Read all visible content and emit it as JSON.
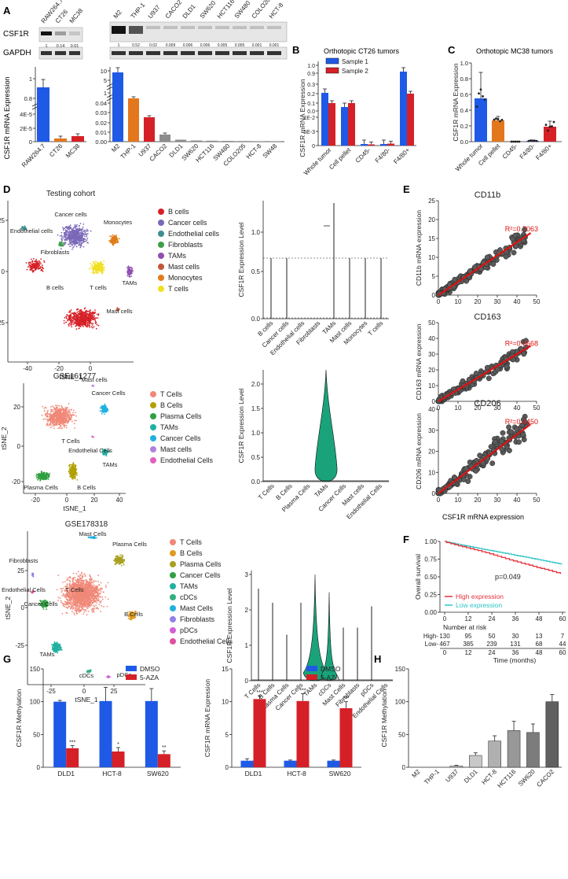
{
  "panels": {
    "A": {
      "letter": "A",
      "protein": "CSF1R",
      "loading": "GAPDH",
      "blot1_lanes": [
        "RAW264.7",
        "CT26",
        "MC38"
      ],
      "blot1_quant": [
        "1",
        "0.14",
        "0.01"
      ],
      "blot2_lanes": [
        "M2",
        "THP-1",
        "U937",
        "CACO2",
        "DLD1",
        "SW620",
        "HCT116",
        "SW480",
        "COLO205",
        "HCT-8"
      ],
      "blot2_quant": [
        "1",
        "0.52",
        "0.02",
        "0.009",
        "0.006",
        "0.006",
        "0.005",
        "0.005",
        "0.001",
        "0.001"
      ],
      "ylabel": "CSF1R mRNA Expression",
      "bar1_ticks": [
        "1",
        "0.8",
        "4E-5",
        "2E-5",
        "0"
      ],
      "bar2_ticks": [
        "10",
        "5",
        "1",
        "0.04",
        "0.03",
        "0.02",
        "0.01",
        "0.00"
      ]
    },
    "B": {
      "letter": "B",
      "title": "Orthotopic CT26 tumors",
      "legend": [
        "Sample 1",
        "Sample 2"
      ],
      "ticks": [
        "1.0",
        "0.9",
        "0.3",
        "0.2",
        "0.1",
        "0.0",
        "1E-2",
        "5E-3",
        "0"
      ]
    },
    "C": {
      "letter": "C",
      "title": "Orthotopic MC38 tumors",
      "ticks": [
        "1.0",
        "0.8",
        "0.6",
        "0.4",
        "0.2",
        "0.0"
      ]
    },
    "D": {
      "letter": "D",
      "cohort1": "Testing cohort",
      "cohort2": "GSE161277",
      "cohort3": "GSE178318",
      "tsne_x": "tSNE_1",
      "tsne_y": "tSNE_2",
      "violin_ylabel": "CSF1R Expression Level",
      "cluster_labels1": [
        "Cancer cells",
        "Monocytes",
        "Endothelial cells",
        "Fibroblasts",
        "T cells",
        "TAMs",
        "B cells",
        "Mast cells"
      ],
      "cluster_labels2": [
        "Mast cells",
        "Cancer Cells",
        "T Cells",
        "Endothelial Cells",
        "TAMs",
        "Plasma Cells",
        "B Cells"
      ],
      "cluster_labels3": [
        "Mast Cells",
        "Plasma Cells",
        "Fibroblasts",
        "Endothelial Cells",
        "T Cells",
        "Cancer Cells",
        "B Cells",
        "TAMs",
        "cDCs",
        "pDCs"
      ],
      "tsne1_xt": [
        "-40",
        "-20",
        "0"
      ],
      "tsne1_yt": [
        "25",
        "0",
        "-25"
      ],
      "tsne2_xt": [
        "-20",
        "0",
        "20",
        "40"
      ],
      "tsne2_yt": [
        "20",
        "0",
        "-20"
      ],
      "tsne3_xt": [
        "-25",
        "0",
        "25"
      ],
      "tsne3_yt": [
        "25",
        "0",
        "-25"
      ],
      "v1_ticks": [
        "1.0",
        "0.5",
        "0.0"
      ],
      "v2_ticks": [
        "2.0",
        "1.5",
        "1.0",
        "0.5",
        "0.0"
      ],
      "v3_ticks": [
        "3",
        "2",
        "1",
        "0"
      ]
    },
    "E": {
      "letter": "E",
      "xlabel": "CSF1R mRNA expression",
      "xticks": [
        "0",
        "10",
        "20",
        "30",
        "40",
        "50"
      ]
    },
    "F": {
      "letter": "F",
      "ylabel": "Overall survival",
      "pvalue": "p=0.049",
      "legend": [
        "High expression",
        "Low expression"
      ],
      "yticks": [
        "1.00",
        "0.75",
        "0.50",
        "0.25",
        "0.00"
      ],
      "xticks": [
        "0",
        "12",
        "24",
        "36",
        "48",
        "60"
      ],
      "risk_title": "Number at risk",
      "risk_high_label": "High",
      "risk_low_label": "Low",
      "risk_high": [
        "130",
        "95",
        "50",
        "30",
        "13",
        "7"
      ],
      "risk_low": [
        "467",
        "385",
        "239",
        "131",
        "68",
        "44"
      ],
      "xlabel": "Time (months)"
    },
    "G": {
      "letter": "G",
      "legend": [
        "DMSO",
        "5-AZA"
      ],
      "ylabel1": "CSF1R Methylation",
      "ylabel2": "CSF1R mRNA Expression",
      "yt1": [
        "150",
        "100",
        "50",
        "0"
      ],
      "yt2": [
        "15",
        "10",
        "5",
        "0"
      ]
    },
    "H": {
      "letter": "H",
      "ylabel": "CSF1R Methylation",
      "yt": [
        "150",
        "100",
        "50",
        "0"
      ]
    }
  },
  "colors": {
    "blue": "#1f5ae6",
    "orange": "#e3771e",
    "red": "#d62027",
    "gray": "#8c8c8c",
    "teal": "#2ec4c4",
    "green": "#1aa37a"
  },
  "chart_data": [
    {
      "id": "A1",
      "type": "bar",
      "categories": [
        "RAW264.7",
        "CT26",
        "MC38"
      ],
      "values": [
        1,
        5e-06,
        1e-05
      ],
      "ylabel": "CSF1R mRNA Expression",
      "colors": [
        "#1f5ae6",
        "#e3771e",
        "#d62027"
      ]
    },
    {
      "id": "A2",
      "type": "bar",
      "categories": [
        "M2",
        "THP-1",
        "U937",
        "CACO2",
        "DLD1",
        "SW620",
        "HCT116",
        "SW480",
        "COLO205",
        "HCT-8",
        "SW48"
      ],
      "values": [
        10.5,
        0.039,
        0.027,
        0.007,
        0.001,
        0.0005,
        0.0004,
        0.0003,
        0.0002,
        0.0001,
        0.0001
      ]
    },
    {
      "id": "B",
      "type": "bar",
      "title": "Orthotopic CT26 tumors",
      "categories": [
        "Whole tumor",
        "Cell pellet",
        "CD45-",
        "F4/80-",
        "F4/80+"
      ],
      "series": [
        {
          "name": "Sample 1",
          "values": [
            0.18,
            0.05,
            0.0008,
            0.0009,
            0.93
          ]
        },
        {
          "name": "Sample 2",
          "values": [
            0.08,
            0.07,
            0.0006,
            0.0013,
            0.2
          ]
        }
      ]
    },
    {
      "id": "C",
      "type": "bar",
      "title": "Orthotopic MC38 tumors",
      "categories": [
        "Whole tumor",
        "Cell pellet",
        "CD45-",
        "F4/80-",
        "F4/80+"
      ],
      "values": [
        0.55,
        0.27,
        0.0,
        0.01,
        0.19
      ],
      "ylim": [
        0,
        1.0
      ]
    },
    {
      "id": "E1",
      "type": "scatter",
      "title": "CD11b",
      "r2": "R²=0.7063",
      "ylabel": "CD11b mRNA expression",
      "yticks": [
        "25",
        "20",
        "15",
        "10",
        "5",
        "0"
      ],
      "ylim": [
        0,
        25
      ]
    },
    {
      "id": "E2",
      "type": "scatter",
      "title": "CD163",
      "r2": "R²=0.6668",
      "ylabel": "CD163 mRNA expression",
      "yticks": [
        "50",
        "40",
        "30",
        "20",
        "10",
        "0"
      ],
      "ylim": [
        0,
        50
      ]
    },
    {
      "id": "E3",
      "type": "scatter",
      "title": "CD206",
      "r2": "R²=0.4450",
      "ylabel": "CD206 mRNA expression",
      "yticks": [
        "40",
        "30",
        "20",
        "10",
        "0"
      ],
      "ylim": [
        0,
        40
      ]
    },
    {
      "id": "G1",
      "type": "bar",
      "categories": [
        "DLD1",
        "HCT-8",
        "SW620"
      ],
      "series": [
        {
          "name": "DMSO",
          "values": [
            100,
            101,
            101
          ]
        },
        {
          "name": "5-AZA",
          "values": [
            29,
            24,
            20
          ]
        }
      ],
      "sig": [
        "***",
        "*",
        "**"
      ],
      "ylim": [
        0,
        150
      ]
    },
    {
      "id": "G2",
      "type": "bar",
      "categories": [
        "DLD1",
        "HCT-8",
        "SW620"
      ],
      "series": [
        {
          "name": "DMSO",
          "values": [
            1,
            1,
            1
          ]
        },
        {
          "name": "5-AZA",
          "values": [
            10.4,
            10.1,
            9.0
          ]
        }
      ],
      "sig": [
        "***",
        "***",
        "***"
      ],
      "ylim": [
        0,
        15
      ]
    },
    {
      "id": "H",
      "type": "bar",
      "categories": [
        "M2",
        "THP-1",
        "U937",
        "DLD1",
        "HCT-8",
        "HCT116",
        "SW620",
        "CACO2"
      ],
      "values": [
        0,
        0,
        2,
        18,
        40,
        56,
        53,
        100
      ],
      "ylim": [
        0,
        150
      ]
    }
  ]
}
